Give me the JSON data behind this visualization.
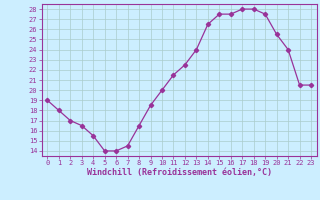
{
  "x": [
    0,
    1,
    2,
    3,
    4,
    5,
    6,
    7,
    8,
    9,
    10,
    11,
    12,
    13,
    14,
    15,
    16,
    17,
    18,
    19,
    20,
    21,
    22,
    23
  ],
  "y": [
    19,
    18,
    17,
    16.5,
    15.5,
    14,
    14,
    14.5,
    16.5,
    18.5,
    20,
    21.5,
    22.5,
    24,
    26.5,
    27.5,
    27.5,
    28,
    28,
    27.5,
    25.5,
    24,
    20.5,
    20.5
  ],
  "line_color": "#993399",
  "marker": "D",
  "marker_size": 2.2,
  "bg_color": "#cceeff",
  "grid_color": "#aacccc",
  "xlabel": "Windchill (Refroidissement éolien,°C)",
  "xlabel_color": "#993399",
  "ylim": [
    13.5,
    28.5
  ],
  "xlim": [
    -0.5,
    23.5
  ],
  "yticks": [
    14,
    15,
    16,
    17,
    18,
    19,
    20,
    21,
    22,
    23,
    24,
    25,
    26,
    27,
    28
  ],
  "xticks": [
    0,
    1,
    2,
    3,
    4,
    5,
    6,
    7,
    8,
    9,
    10,
    11,
    12,
    13,
    14,
    15,
    16,
    17,
    18,
    19,
    20,
    21,
    22,
    23
  ],
  "tick_label_size": 5,
  "xlabel_size": 6,
  "spine_color": "#993399",
  "tick_color": "#993399"
}
